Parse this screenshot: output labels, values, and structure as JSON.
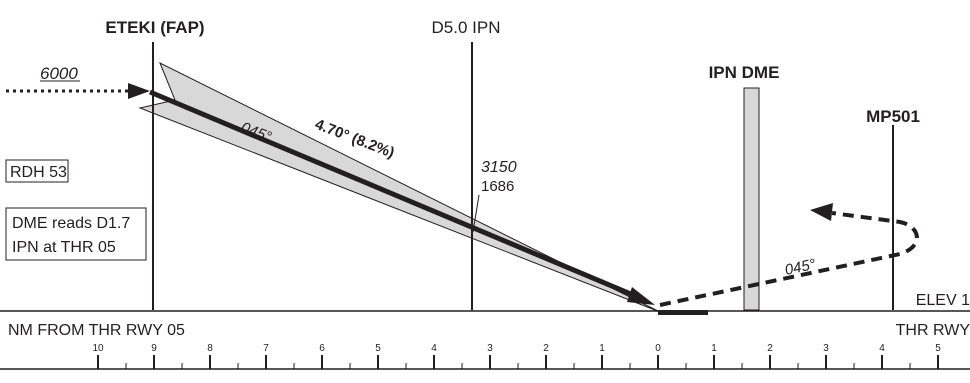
{
  "fixes": {
    "eteki": "ETEKI (FAP)",
    "d50": "D5.0 IPN",
    "ipndme": "IPN DME",
    "mp501": "MP501"
  },
  "altitudes": {
    "initial": "6000",
    "at_d50": "3150",
    "at_d50_height": "1686"
  },
  "glidepath": {
    "angle": "4.70° (8.2%)",
    "course_final": "045°",
    "course_missed": "045°"
  },
  "notes": {
    "rdh": "RDH 53",
    "dme_line1": "DME reads D1.7",
    "dme_line2": "IPN at THR 05"
  },
  "ground": {
    "elev": "ELEV 1",
    "thr_label": "THR RWY",
    "nm_label": "NM FROM THR RWY 05"
  },
  "scale": {
    "ticks": [
      "10",
      "9",
      "8",
      "7",
      "6",
      "5",
      "4",
      "3",
      "2",
      "1",
      "0",
      "1",
      "2",
      "3",
      "4",
      "5"
    ]
  }
}
